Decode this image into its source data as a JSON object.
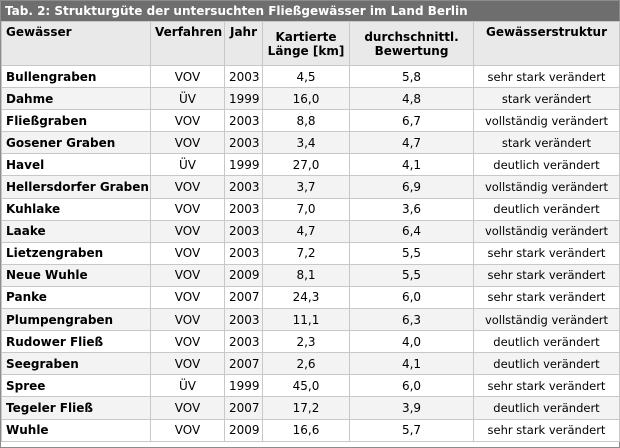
{
  "caption": "Tab. 2: Strukturgüte der untersuchten Fließgewässer im Land Berlin",
  "headers": {
    "gewaesser": "Gewässer",
    "verfahren": "Verfahren",
    "jahr": "Jahr",
    "laenge": "Kartierte Länge [km]",
    "bewertung": "durchschnittl. Bewertung",
    "struktur": "Gewässerstruktur"
  },
  "rows": [
    {
      "name": "Bullengraben",
      "verfahren": "VOV",
      "jahr": "2003",
      "laenge": "4,5",
      "bewertung": "5,8",
      "struktur": "sehr stark verändert"
    },
    {
      "name": "Dahme",
      "verfahren": "ÜV",
      "jahr": "1999",
      "laenge": "16,0",
      "bewertung": "4,8",
      "struktur": "stark verändert"
    },
    {
      "name": "Fließgraben",
      "verfahren": "VOV",
      "jahr": "2003",
      "laenge": "8,8",
      "bewertung": "6,7",
      "struktur": "vollständig verändert"
    },
    {
      "name": "Gosener Graben",
      "verfahren": "VOV",
      "jahr": "2003",
      "laenge": "3,4",
      "bewertung": "4,7",
      "struktur": "stark verändert"
    },
    {
      "name": "Havel",
      "verfahren": "ÜV",
      "jahr": "1999",
      "laenge": "27,0",
      "bewertung": "4,1",
      "struktur": "deutlich verändert"
    },
    {
      "name": "Hellersdorfer Graben",
      "verfahren": "VOV",
      "jahr": "2003",
      "laenge": "3,7",
      "bewertung": "6,9",
      "struktur": "vollständig verändert"
    },
    {
      "name": "Kuhlake",
      "verfahren": "VOV",
      "jahr": "2003",
      "laenge": "7,0",
      "bewertung": "3,6",
      "struktur": "deutlich verändert"
    },
    {
      "name": "Laake",
      "verfahren": "VOV",
      "jahr": "2003",
      "laenge": "4,7",
      "bewertung": "6,4",
      "struktur": "vollständig verändert"
    },
    {
      "name": "Lietzengraben",
      "verfahren": "VOV",
      "jahr": "2003",
      "laenge": "7,2",
      "bewertung": "5,5",
      "struktur": "sehr stark verändert"
    },
    {
      "name": "Neue Wuhle",
      "verfahren": "VOV",
      "jahr": "2009",
      "laenge": "8,1",
      "bewertung": "5,5",
      "struktur": "sehr stark verändert"
    },
    {
      "name": "Panke",
      "verfahren": "VOV",
      "jahr": "2007",
      "laenge": "24,3",
      "bewertung": "6,0",
      "struktur": "sehr stark verändert"
    },
    {
      "name": "Plumpengraben",
      "verfahren": "VOV",
      "jahr": "2003",
      "laenge": "11,1",
      "bewertung": "6,3",
      "struktur": "vollständig verändert"
    },
    {
      "name": "Rudower Fließ",
      "verfahren": "VOV",
      "jahr": "2003",
      "laenge": "2,3",
      "bewertung": "4,0",
      "struktur": "deutlich verändert"
    },
    {
      "name": "Seegraben",
      "verfahren": "VOV",
      "jahr": "2007",
      "laenge": "2,6",
      "bewertung": "4,1",
      "struktur": "deutlich verändert"
    },
    {
      "name": "Spree",
      "verfahren": "ÜV",
      "jahr": "1999",
      "laenge": "45,0",
      "bewertung": "6,0",
      "struktur": "sehr stark verändert"
    },
    {
      "name": "Tegeler Fließ",
      "verfahren": "VOV",
      "jahr": "2007",
      "laenge": "17,2",
      "bewertung": "3,9",
      "struktur": "deutlich verändert"
    },
    {
      "name": "Wuhle",
      "verfahren": "VOV",
      "jahr": "2009",
      "laenge": "16,6",
      "bewertung": "5,7",
      "struktur": "sehr stark verändert"
    }
  ]
}
